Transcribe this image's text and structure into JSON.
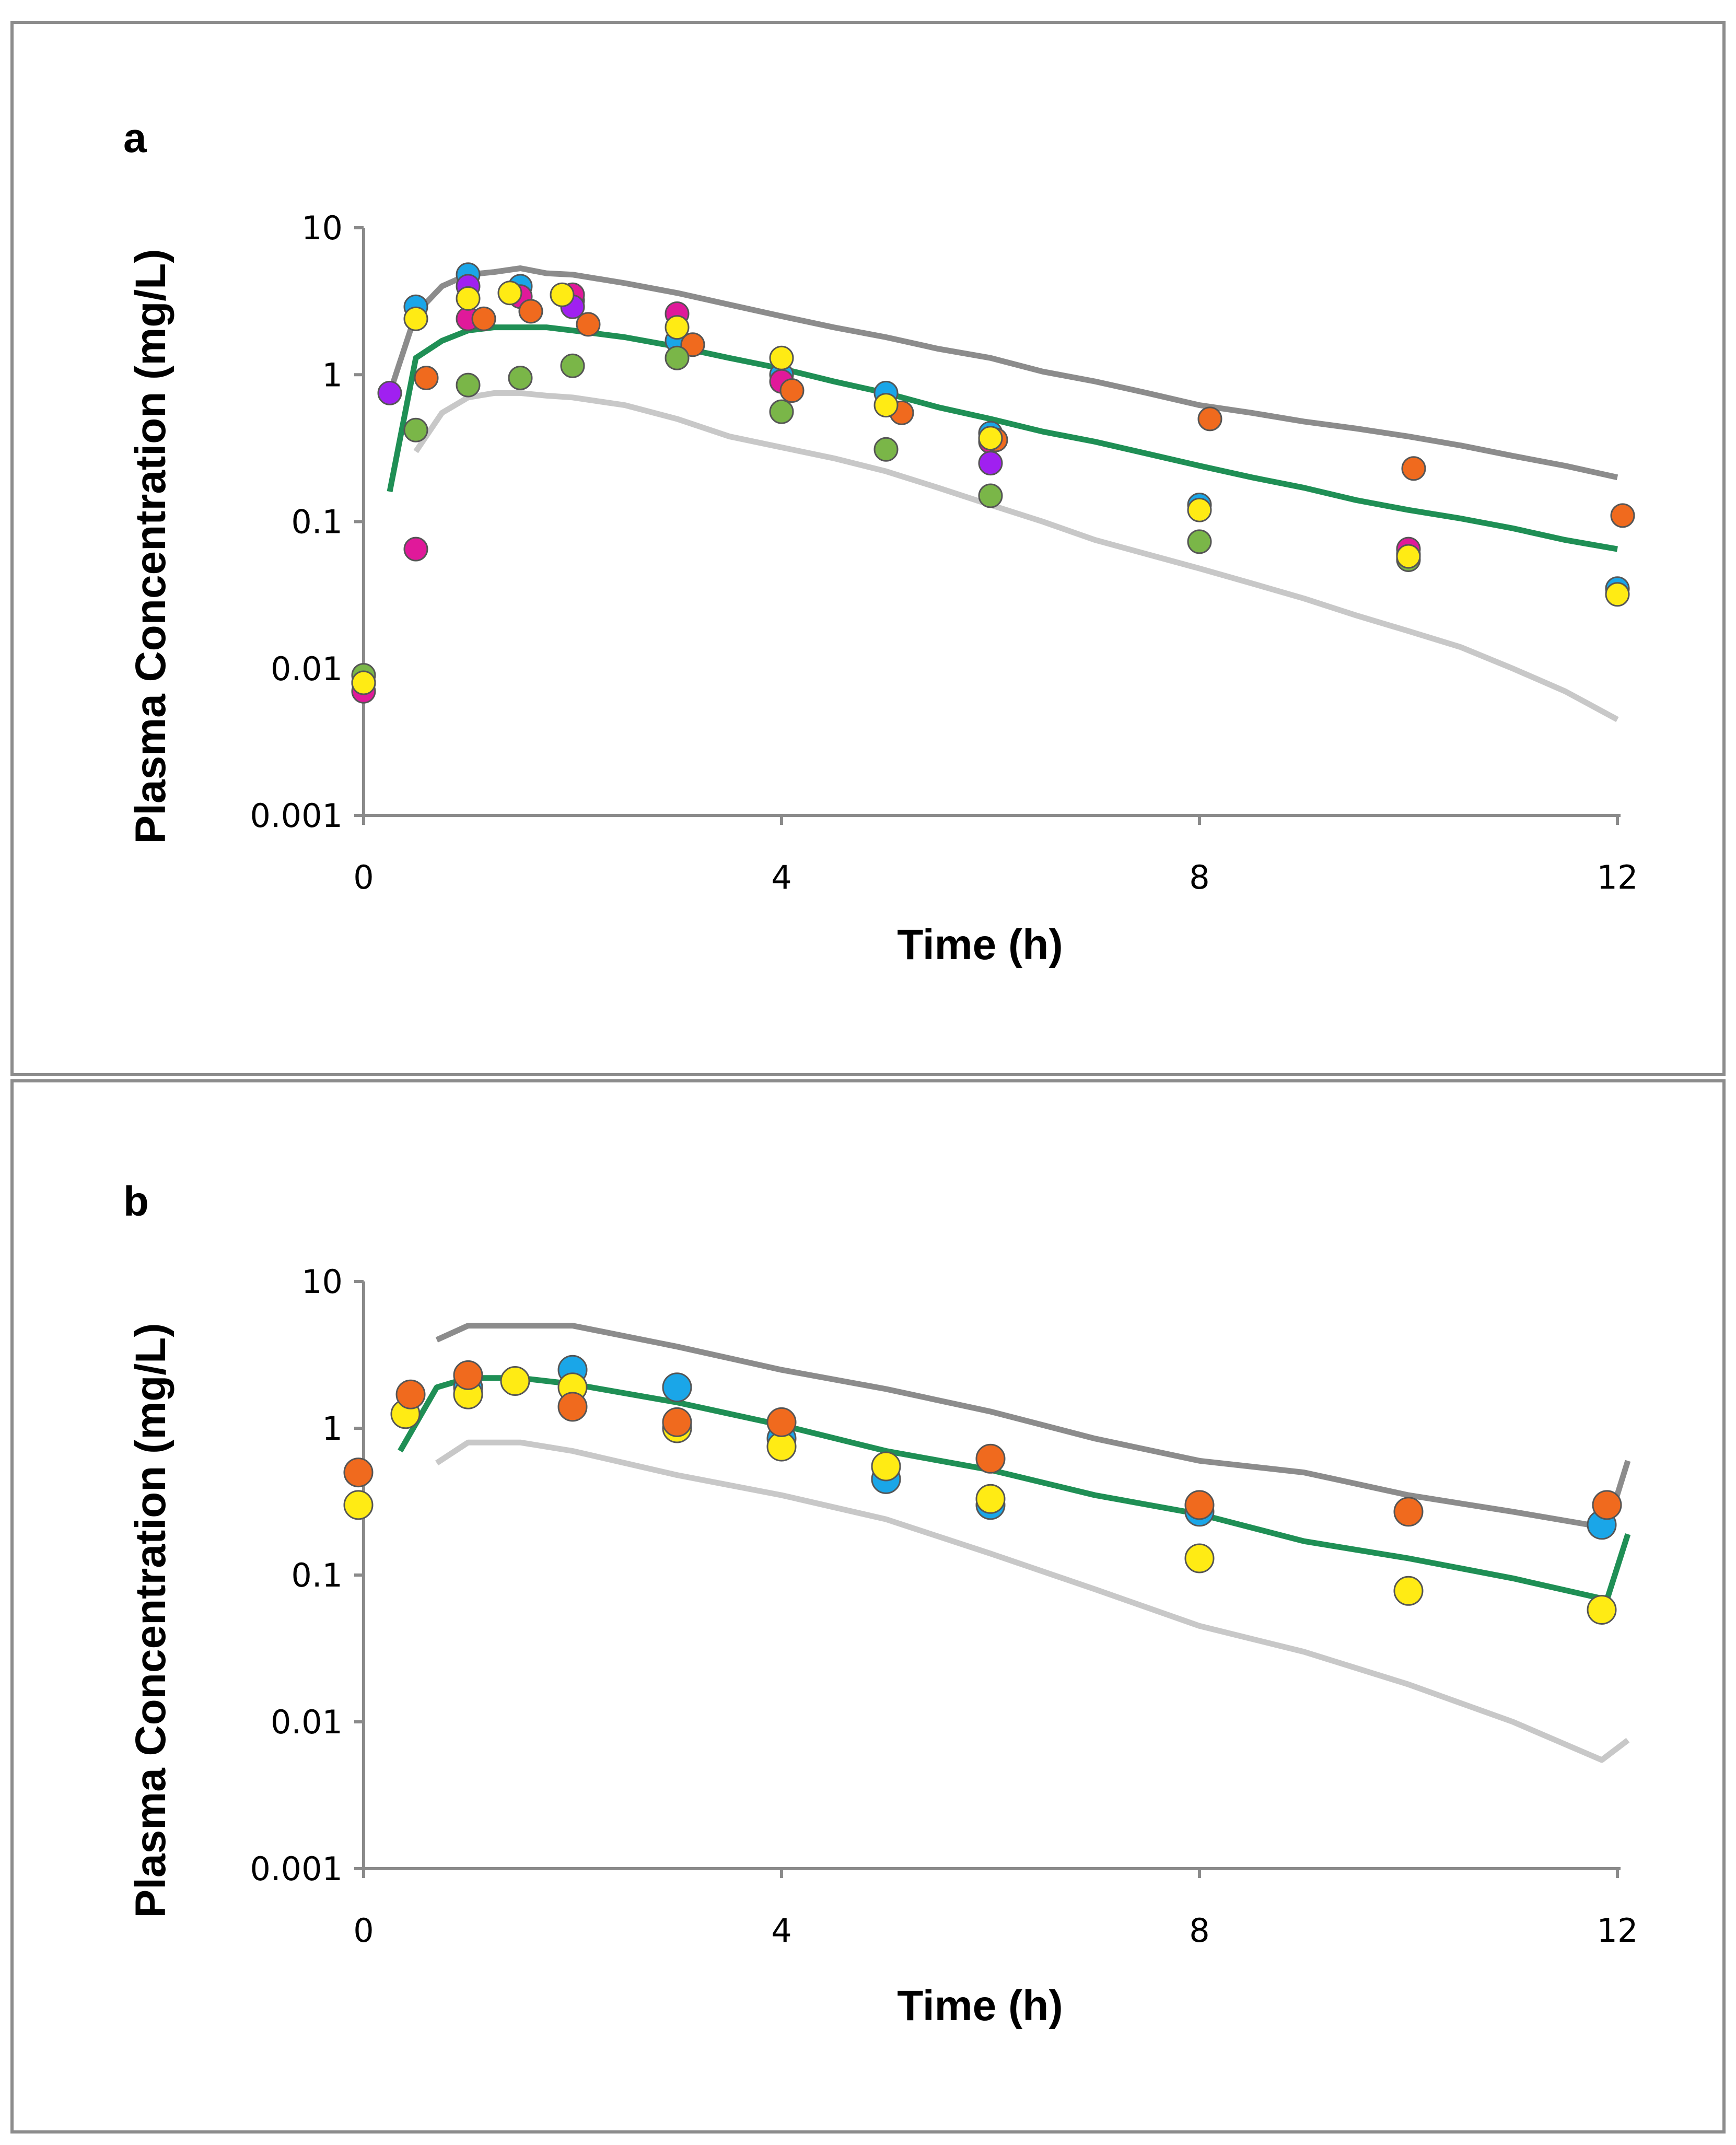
{
  "chart_data": [
    {
      "type": "scatter",
      "panel_label": "a",
      "xlabel": "Time (h)",
      "ylabel": "Plasma Concentration (mg/L)",
      "yscale": "log",
      "xlim": [
        0,
        12
      ],
      "ylim": [
        0.001,
        10
      ],
      "xticks": [
        "0",
        "4",
        "8",
        "12"
      ],
      "yticks": [
        "10",
        "1",
        "0.1",
        "0.01",
        "0.001"
      ],
      "lines": [
        {
          "name": "upper",
          "color": "#8c8c8c",
          "x": [
            0.25,
            0.5,
            0.75,
            1,
            1.25,
            1.5,
            1.75,
            2,
            2.5,
            3,
            3.5,
            4,
            4.5,
            5,
            5.5,
            6,
            6.5,
            7,
            7.5,
            8,
            8.5,
            9,
            9.5,
            10,
            10.5,
            11,
            11.5,
            12
          ],
          "y": [
            0.75,
            2.6,
            4.0,
            4.8,
            5.0,
            5.3,
            4.9,
            4.8,
            4.2,
            3.6,
            3.0,
            2.5,
            2.1,
            1.8,
            1.5,
            1.3,
            1.05,
            0.9,
            0.75,
            0.62,
            0.55,
            0.48,
            0.43,
            0.38,
            0.33,
            0.28,
            0.24,
            0.2
          ]
        },
        {
          "name": "median",
          "color": "#1f8f55",
          "x": [
            0.25,
            0.5,
            0.75,
            1,
            1.25,
            1.5,
            1.75,
            2,
            2.5,
            3,
            3.5,
            4,
            4.5,
            5,
            5.5,
            6,
            6.5,
            7,
            7.5,
            8,
            8.5,
            9,
            9.5,
            10,
            10.5,
            11,
            11.5,
            12
          ],
          "y": [
            0.16,
            1.3,
            1.7,
            2.0,
            2.1,
            2.1,
            2.1,
            2.0,
            1.8,
            1.55,
            1.3,
            1.1,
            0.9,
            0.75,
            0.6,
            0.5,
            0.41,
            0.35,
            0.29,
            0.24,
            0.2,
            0.17,
            0.14,
            0.12,
            0.105,
            0.09,
            0.075,
            0.065
          ]
        },
        {
          "name": "lower",
          "color": "#c8c8c8",
          "x": [
            0.5,
            0.75,
            1,
            1.25,
            1.5,
            1.75,
            2,
            2.5,
            3,
            3.5,
            4,
            4.5,
            5,
            5.5,
            6,
            6.5,
            7,
            7.5,
            8,
            8.5,
            9,
            9.5,
            10,
            10.5,
            11,
            11.5,
            12
          ],
          "y": [
            0.3,
            0.55,
            0.7,
            0.75,
            0.75,
            0.72,
            0.7,
            0.62,
            0.5,
            0.38,
            0.32,
            0.27,
            0.22,
            0.17,
            0.13,
            0.1,
            0.075,
            0.06,
            0.048,
            0.038,
            0.03,
            0.023,
            0.018,
            0.014,
            0.01,
            0.007,
            0.0045
          ]
        }
      ],
      "series": [
        {
          "name": "subject-blue",
          "color": "#1aa6e8",
          "x": [
            0,
            0.5,
            1,
            1.5,
            2,
            3,
            4,
            5,
            6,
            8,
            10,
            12
          ],
          "y": [
            0.008,
            2.9,
            4.8,
            4.0,
            3.2,
            1.7,
            1.0,
            0.75,
            0.4,
            0.13,
            0.06,
            0.035
          ]
        },
        {
          "name": "subject-magenta",
          "color": "#e0199a",
          "x": [
            0,
            0.5,
            1,
            1.5,
            2,
            3,
            4,
            6,
            10
          ],
          "y": [
            0.007,
            0.065,
            2.4,
            3.4,
            3.5,
            2.6,
            0.9,
            0.35,
            0.065
          ]
        },
        {
          "name": "subject-purple",
          "color": "#a020f0",
          "x": [
            0.25,
            1,
            2,
            6
          ],
          "y": [
            0.75,
            4.0,
            2.9,
            0.25
          ]
        },
        {
          "name": "subject-orange",
          "color": "#f06a1e",
          "x": [
            0.6,
            1.15,
            1.6,
            2.15,
            3.15,
            4.1,
            5.15,
            6.05,
            8.1,
            10.05,
            12.05
          ],
          "y": [
            0.95,
            2.4,
            2.7,
            2.2,
            1.6,
            0.78,
            0.55,
            0.36,
            0.5,
            0.23,
            0.11
          ]
        },
        {
          "name": "subject-green",
          "color": "#7ab648",
          "x": [
            0,
            0.5,
            1,
            1.5,
            2,
            3,
            4,
            5,
            6,
            8,
            10
          ],
          "y": [
            0.009,
            0.42,
            0.85,
            0.95,
            1.15,
            1.3,
            0.56,
            0.31,
            0.15,
            0.073,
            0.055
          ]
        },
        {
          "name": "subject-yellow",
          "color": "#ffeb14",
          "x": [
            0,
            0.5,
            1,
            1.4,
            1.9,
            3,
            4,
            5,
            6,
            8,
            10,
            12
          ],
          "y": [
            0.008,
            2.4,
            3.3,
            3.6,
            3.5,
            2.1,
            1.3,
            0.62,
            0.37,
            0.12,
            0.058,
            0.032
          ]
        }
      ]
    },
    {
      "type": "scatter",
      "panel_label": "b",
      "xlabel": "Time (h)",
      "ylabel": "Plasma Concentration (mg/L)",
      "yscale": "log",
      "xlim": [
        0,
        12
      ],
      "ylim": [
        0.001,
        10
      ],
      "xticks": [
        "0",
        "4",
        "8",
        "12"
      ],
      "yticks": [
        "10",
        "1",
        "0.1",
        "0.01",
        "0.001"
      ],
      "lines": [
        {
          "name": "upper",
          "color": "#8c8c8c",
          "x": [
            0.7,
            1,
            1.5,
            2,
            3,
            4,
            5,
            6,
            7,
            8,
            9,
            10,
            11,
            11.9,
            12.1
          ],
          "y": [
            4.0,
            5.0,
            5.0,
            5.0,
            3.6,
            2.5,
            1.85,
            1.3,
            0.85,
            0.6,
            0.5,
            0.35,
            0.27,
            0.21,
            0.6
          ]
        },
        {
          "name": "median",
          "color": "#1f8f55",
          "x": [
            0.35,
            0.7,
            1,
            1.5,
            2,
            3,
            4,
            5,
            6,
            7,
            8,
            9,
            10,
            11,
            11.9,
            12.1
          ],
          "y": [
            0.7,
            1.9,
            2.2,
            2.2,
            2.0,
            1.5,
            1.05,
            0.7,
            0.52,
            0.35,
            0.26,
            0.17,
            0.13,
            0.095,
            0.068,
            0.19
          ]
        },
        {
          "name": "lower",
          "color": "#c8c8c8",
          "x": [
            0.7,
            1,
            1.5,
            2,
            3,
            4,
            5,
            6,
            7,
            8,
            9,
            10,
            11,
            11.85,
            12.1
          ],
          "y": [
            0.58,
            0.8,
            0.8,
            0.7,
            0.48,
            0.35,
            0.24,
            0.14,
            0.08,
            0.045,
            0.03,
            0.018,
            0.01,
            0.0055,
            0.0075
          ]
        }
      ],
      "series": [
        {
          "name": "subject-blue",
          "color": "#1aa6e8",
          "x": [
            1,
            2,
            3,
            4,
            5,
            6,
            8,
            11.85
          ],
          "y": [
            1.9,
            2.5,
            1.9,
            0.85,
            0.45,
            0.3,
            0.27,
            0.22
          ]
        },
        {
          "name": "subject-yellow",
          "color": "#ffeb14",
          "x": [
            -0.05,
            0.4,
            1,
            1.45,
            2,
            3,
            4,
            5,
            6,
            8,
            10,
            11.85
          ],
          "y": [
            0.3,
            1.25,
            1.7,
            2.1,
            1.9,
            1.0,
            0.75,
            0.55,
            0.33,
            0.13,
            0.078,
            0.058
          ]
        },
        {
          "name": "subject-orange",
          "color": "#f06a1e",
          "x": [
            -0.05,
            0.45,
            1,
            2,
            3,
            4,
            6,
            8,
            10,
            11.9
          ],
          "y": [
            0.5,
            1.7,
            2.3,
            1.4,
            1.1,
            1.1,
            0.62,
            0.3,
            0.27,
            0.3
          ]
        }
      ]
    }
  ]
}
